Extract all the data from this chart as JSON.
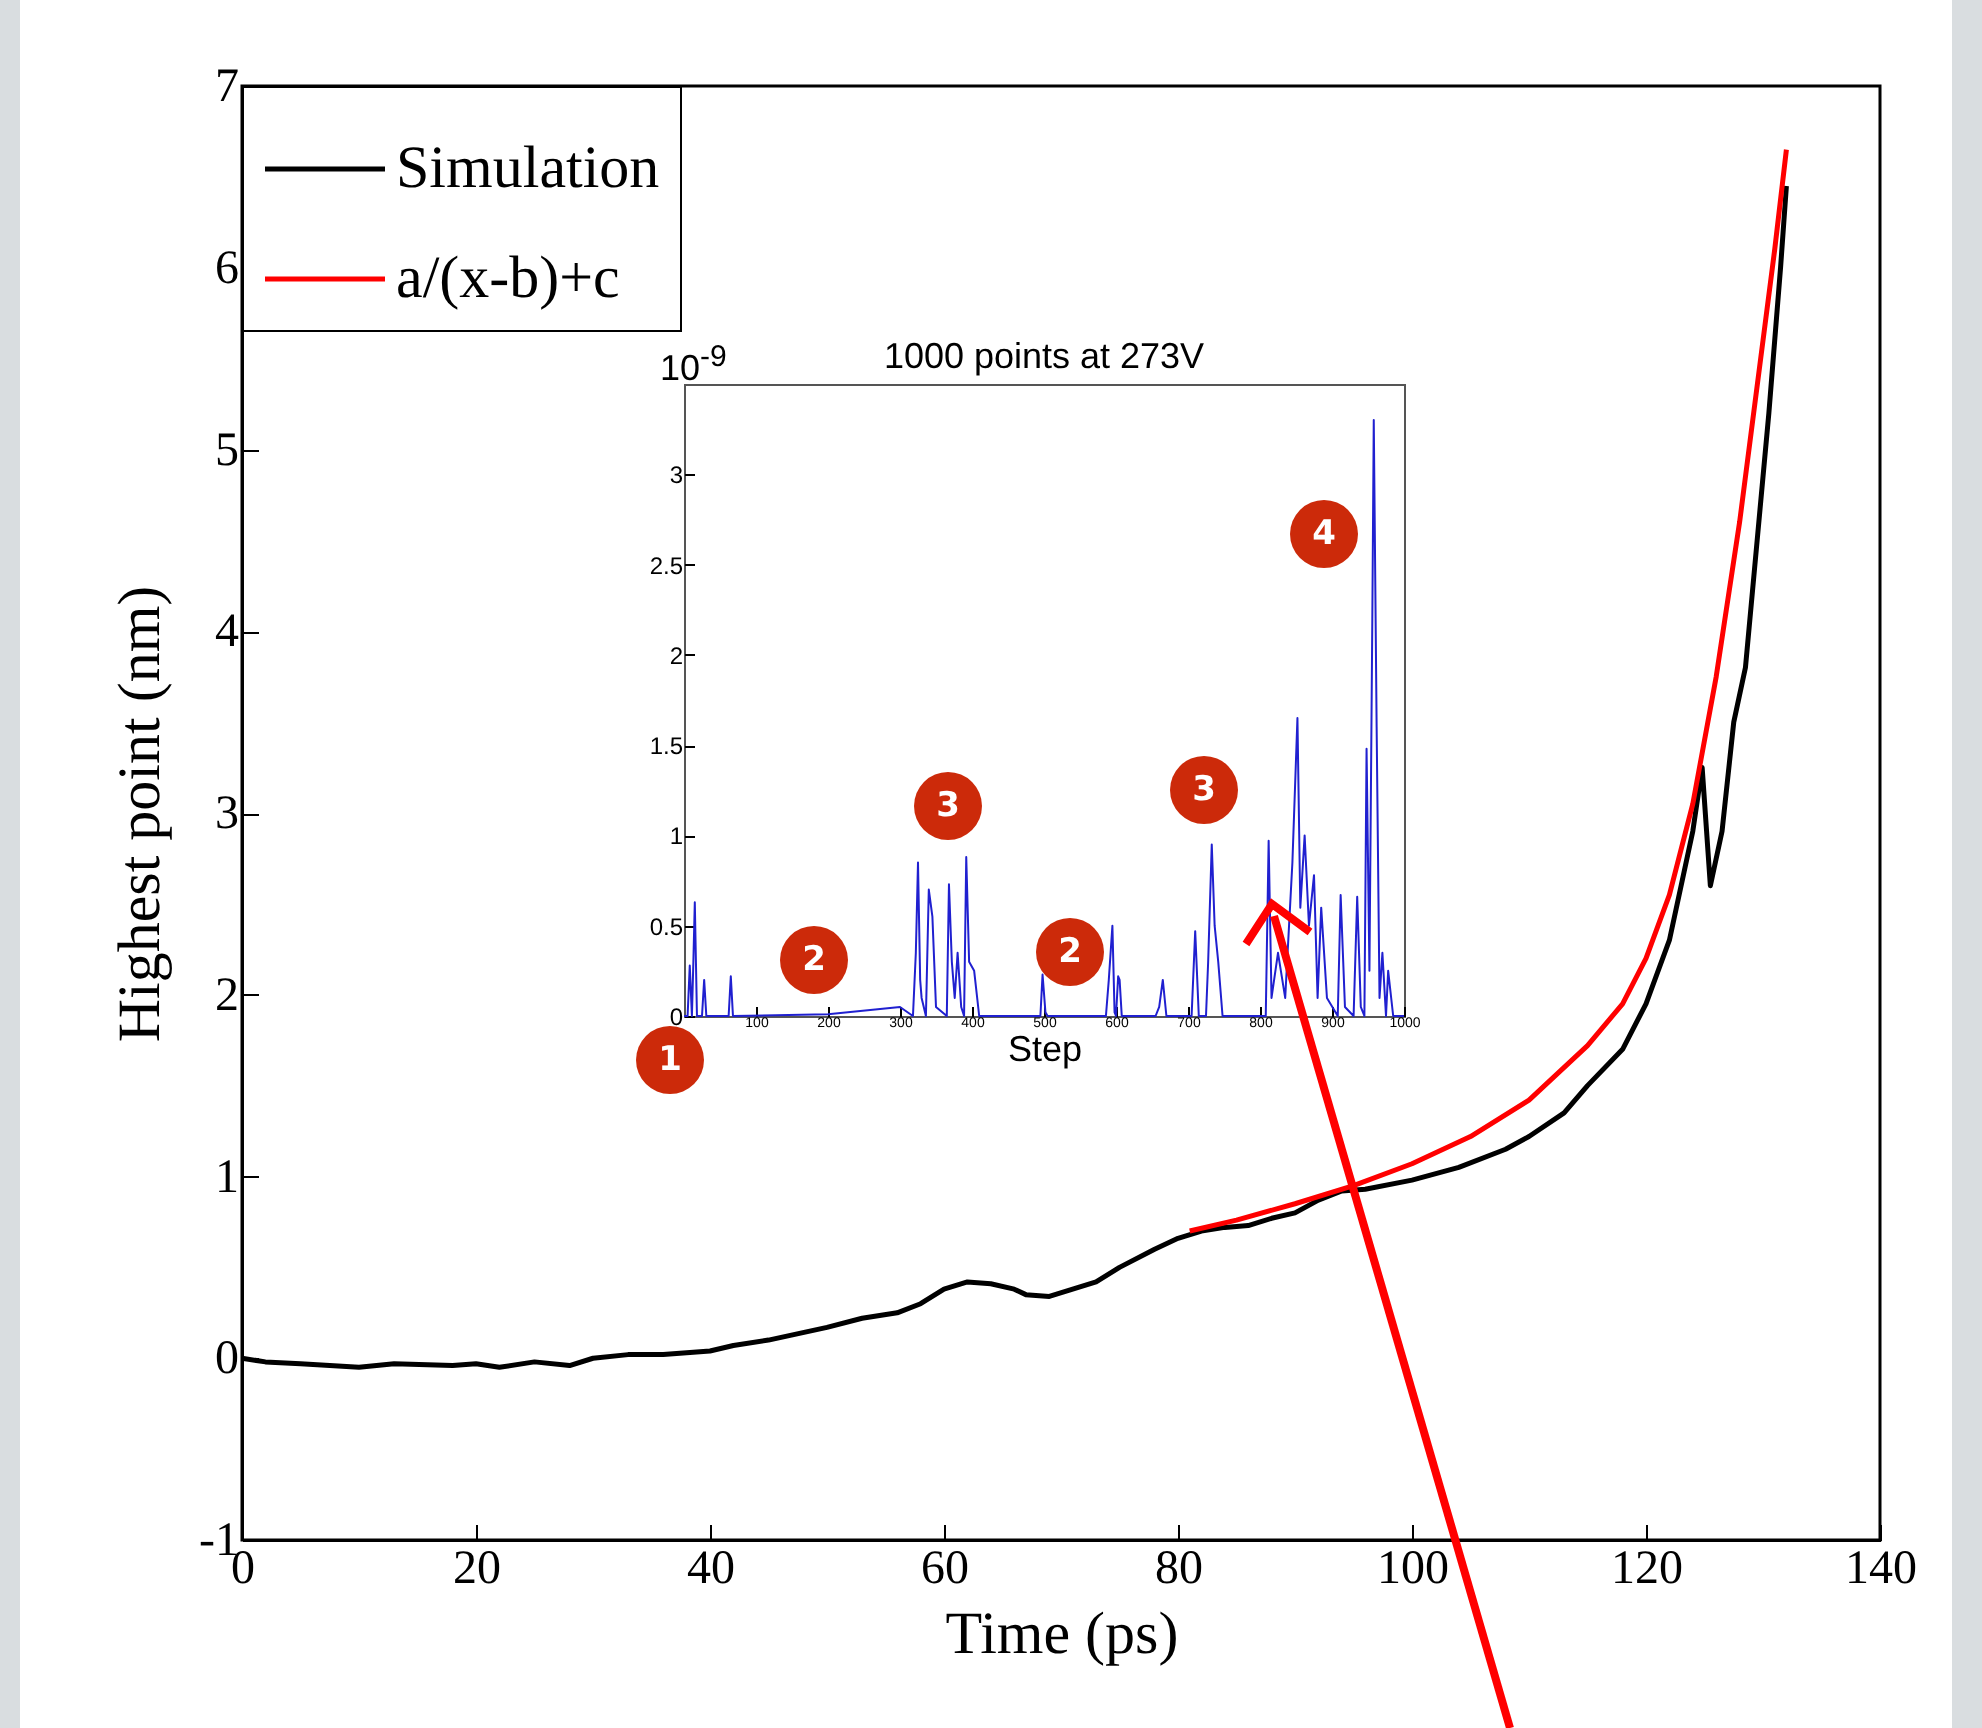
{
  "chart_data": [
    {
      "type": "line",
      "xlabel": "Time (ps)",
      "ylabel": "Highest point (nm)",
      "xlim": [
        0,
        140
      ],
      "ylim": [
        -1,
        7
      ],
      "xticks": [
        0,
        20,
        40,
        60,
        80,
        100,
        120,
        140
      ],
      "yticks": [
        -1,
        0,
        1,
        2,
        3,
        4,
        5,
        6,
        7
      ],
      "legend": "top left",
      "series": [
        {
          "name": "Simulation",
          "color": "#000000",
          "x": [
            0,
            2,
            5,
            10,
            13,
            18,
            20,
            22,
            25,
            28,
            30,
            33,
            36,
            40,
            42,
            45,
            50,
            53,
            56,
            58,
            60,
            62,
            64,
            66,
            67,
            69,
            71,
            73,
            75,
            78,
            80,
            82,
            84,
            86,
            88,
            90,
            92,
            94,
            96,
            100,
            104,
            108,
            110,
            113,
            115,
            118,
            120,
            122,
            124,
            124.8,
            125.5,
            126.5,
            127.5,
            128.5,
            129.5,
            130.5,
            131.5,
            132
          ],
          "values": [
            0.0,
            -0.02,
            -0.03,
            -0.05,
            -0.03,
            -0.04,
            -0.03,
            -0.05,
            -0.02,
            -0.04,
            0.0,
            0.02,
            0.02,
            0.04,
            0.07,
            0.1,
            0.17,
            0.22,
            0.25,
            0.3,
            0.38,
            0.42,
            0.41,
            0.38,
            0.35,
            0.34,
            0.38,
            0.42,
            0.5,
            0.6,
            0.66,
            0.7,
            0.72,
            0.73,
            0.77,
            0.8,
            0.87,
            0.92,
            0.93,
            0.98,
            1.05,
            1.15,
            1.22,
            1.35,
            1.5,
            1.7,
            1.95,
            2.3,
            2.9,
            3.25,
            2.6,
            2.9,
            3.5,
            3.8,
            4.5,
            5.2,
            6.0,
            6.45
          ]
        },
        {
          "name": "a/(x-b)+c",
          "color": "#ff0000",
          "x": [
            81,
            85,
            90,
            95,
            100,
            105,
            110,
            115,
            118,
            120,
            122,
            124,
            126,
            128,
            130,
            131,
            132
          ],
          "values": [
            0.7,
            0.76,
            0.85,
            0.95,
            1.07,
            1.22,
            1.42,
            1.72,
            1.95,
            2.2,
            2.55,
            3.05,
            3.75,
            4.6,
            5.6,
            6.1,
            6.65
          ]
        }
      ]
    },
    {
      "type": "line",
      "title": "1000 points at 273V",
      "xlabel": "Step",
      "xlim": [
        0,
        1000
      ],
      "ylim": [
        0,
        3.5
      ],
      "xticks": [
        100,
        200,
        300,
        400,
        500,
        600,
        700,
        800,
        900,
        1000
      ],
      "yticks": [
        0,
        0.5,
        1,
        1.5,
        2,
        2.5,
        3
      ],
      "annotations": [
        "10$^{-9}$",
        "1",
        "2",
        "3",
        "2",
        "3",
        "4"
      ],
      "series": [
        {
          "color": "#2020d0",
          "x": [
            0,
            5,
            8,
            11,
            13,
            15,
            18,
            25,
            28,
            31,
            62,
            65,
            68,
            200,
            300,
            318,
            322,
            325,
            328,
            330,
            336,
            340,
            345,
            350,
            365,
            368,
            372,
            376,
            380,
            385,
            389,
            392,
            396,
            403,
            410,
            495,
            498,
            502,
            505,
            586,
            590,
            595,
            598,
            600,
            603,
            605,
            608,
            610,
            655,
            660,
            665,
            670,
            705,
            710,
            715,
            725,
            728,
            733,
            737,
            742,
            748,
            808,
            812,
            816,
            825,
            835,
            845,
            852,
            856,
            862,
            868,
            875,
            880,
            885,
            893,
            908,
            912,
            918,
            930,
            935,
            940,
            945,
            948,
            952,
            956,
            958,
            962,
            966,
            970,
            975,
            978,
            985,
            1000
          ],
          "values": [
            0,
            0,
            0.28,
            0,
            0.3,
            0.63,
            0,
            0,
            0.2,
            0,
            0,
            0.22,
            0,
            0.01,
            0.05,
            0,
            0.35,
            0.85,
            0.2,
            0.1,
            0,
            0.7,
            0.55,
            0.05,
            0,
            0.73,
            0.3,
            0.1,
            0.35,
            0.05,
            0,
            0.88,
            0.3,
            0.25,
            0,
            0,
            0.23,
            0.02,
            0,
            0,
            0.2,
            0.5,
            0.02,
            0,
            0.22,
            0.2,
            0,
            0,
            0,
            0.05,
            0.2,
            0,
            0,
            0.47,
            0,
            0,
            0.3,
            0.95,
            0.5,
            0.3,
            0,
            0,
            0.97,
            0.1,
            0.35,
            0.1,
            0.85,
            1.65,
            0.6,
            1.0,
            0.5,
            0.78,
            0.1,
            0.6,
            0.1,
            0,
            0.67,
            0.05,
            0,
            0.66,
            0.05,
            0,
            1.48,
            0.25,
            2.2,
            3.3,
            1.6,
            0.1,
            0.35,
            0,
            0.25,
            0,
            0
          ]
        }
      ]
    }
  ]
}
